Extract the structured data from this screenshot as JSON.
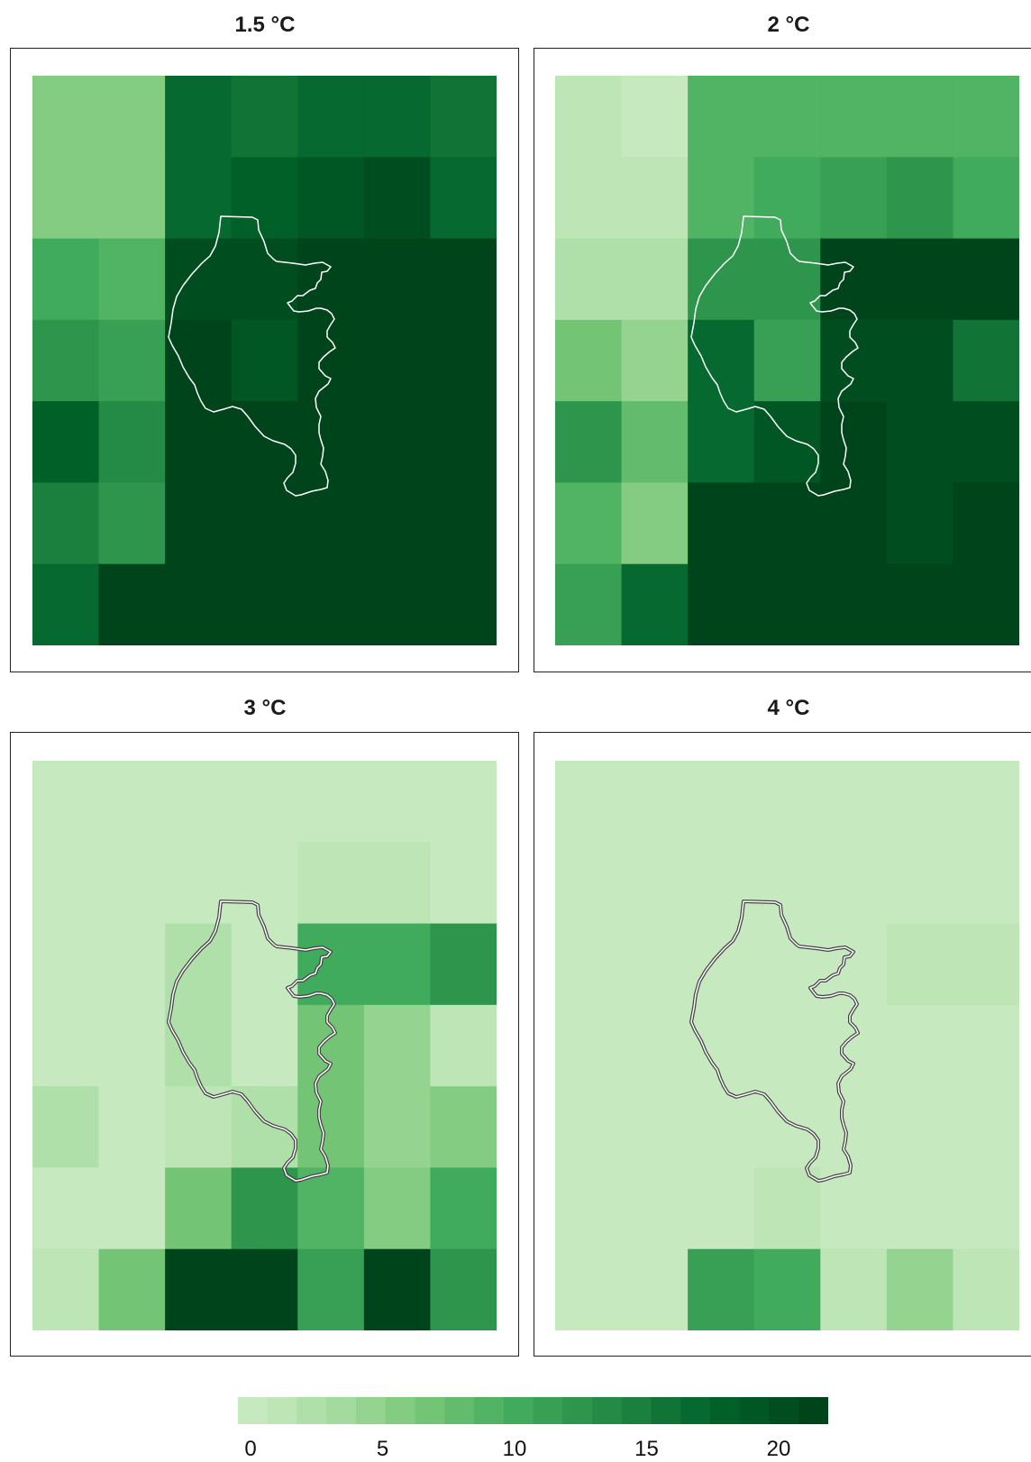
{
  "chart_data": {
    "type": "heatmap",
    "colorbar": {
      "min": 0,
      "max": 22,
      "ticks": [
        "0",
        "5",
        "10",
        "15",
        "20"
      ],
      "tick_values": [
        0,
        5,
        10,
        15,
        20
      ],
      "colors": [
        "#c7e9c0",
        "#bde5b5",
        "#b0e0a9",
        "#a3da9e",
        "#94d390",
        "#85cc83",
        "#74c476",
        "#63bb6d",
        "#51b364",
        "#41ab5d",
        "#37a055",
        "#2d954c",
        "#238b45",
        "#1b7f3e",
        "#127336",
        "#06692f",
        "#006027",
        "#005723",
        "#004e1f",
        "#00441b"
      ]
    },
    "panels": [
      {
        "title": "1.5 °C",
        "grid": [
          [
            6,
            6,
            17,
            16,
            17,
            17,
            16
          ],
          [
            6,
            6,
            17,
            18,
            19,
            20,
            17
          ],
          [
            10,
            9,
            20,
            20,
            21,
            21,
            21
          ],
          [
            13,
            12,
            21,
            19,
            21,
            21,
            21
          ],
          [
            18,
            14,
            21,
            21,
            21,
            21,
            21
          ],
          [
            15,
            13,
            21,
            21,
            21,
            21,
            21
          ],
          [
            17,
            21,
            21,
            21,
            21,
            21,
            21
          ]
        ]
      },
      {
        "title": "2 °C",
        "grid": [
          [
            2,
            1,
            9,
            9,
            9,
            9,
            9
          ],
          [
            2,
            2,
            9,
            10,
            11,
            13,
            10
          ],
          [
            3,
            3,
            13,
            13,
            21,
            21,
            21
          ],
          [
            7,
            5,
            17,
            11,
            20,
            20,
            16
          ],
          [
            13,
            8,
            17,
            19,
            21,
            20,
            20
          ],
          [
            9,
            6,
            21,
            21,
            21,
            20,
            21
          ],
          [
            12,
            17,
            21,
            21,
            21,
            21,
            21
          ]
        ]
      },
      {
        "title": "3 °C",
        "grid": [
          [
            0,
            0,
            1,
            1,
            1,
            1,
            1
          ],
          [
            0,
            0,
            1,
            1,
            2,
            2,
            1
          ],
          [
            0,
            0,
            3,
            1,
            10,
            10,
            13
          ],
          [
            0,
            0,
            3,
            1,
            7,
            5,
            2
          ],
          [
            3,
            0,
            2,
            3,
            7,
            5,
            6
          ],
          [
            1,
            0,
            7,
            13,
            9,
            6,
            10
          ],
          [
            2,
            7,
            21,
            21,
            11,
            21,
            13
          ]
        ]
      },
      {
        "title": "4 °C",
        "grid": [
          [
            0,
            0,
            0,
            0,
            0,
            0,
            0
          ],
          [
            0,
            0,
            0,
            0,
            0,
            0,
            0
          ],
          [
            0,
            0,
            0,
            0,
            0,
            2,
            2
          ],
          [
            0,
            0,
            0,
            0,
            0,
            1,
            0
          ],
          [
            0,
            0,
            0,
            0,
            1,
            1,
            1
          ],
          [
            0,
            0,
            1,
            2,
            1,
            1,
            1
          ],
          [
            0,
            0,
            11,
            10,
            2,
            5,
            2
          ]
        ]
      }
    ]
  },
  "outline_colors": [
    "#ffffff",
    "#ffffff",
    "#444444",
    "#444444"
  ]
}
